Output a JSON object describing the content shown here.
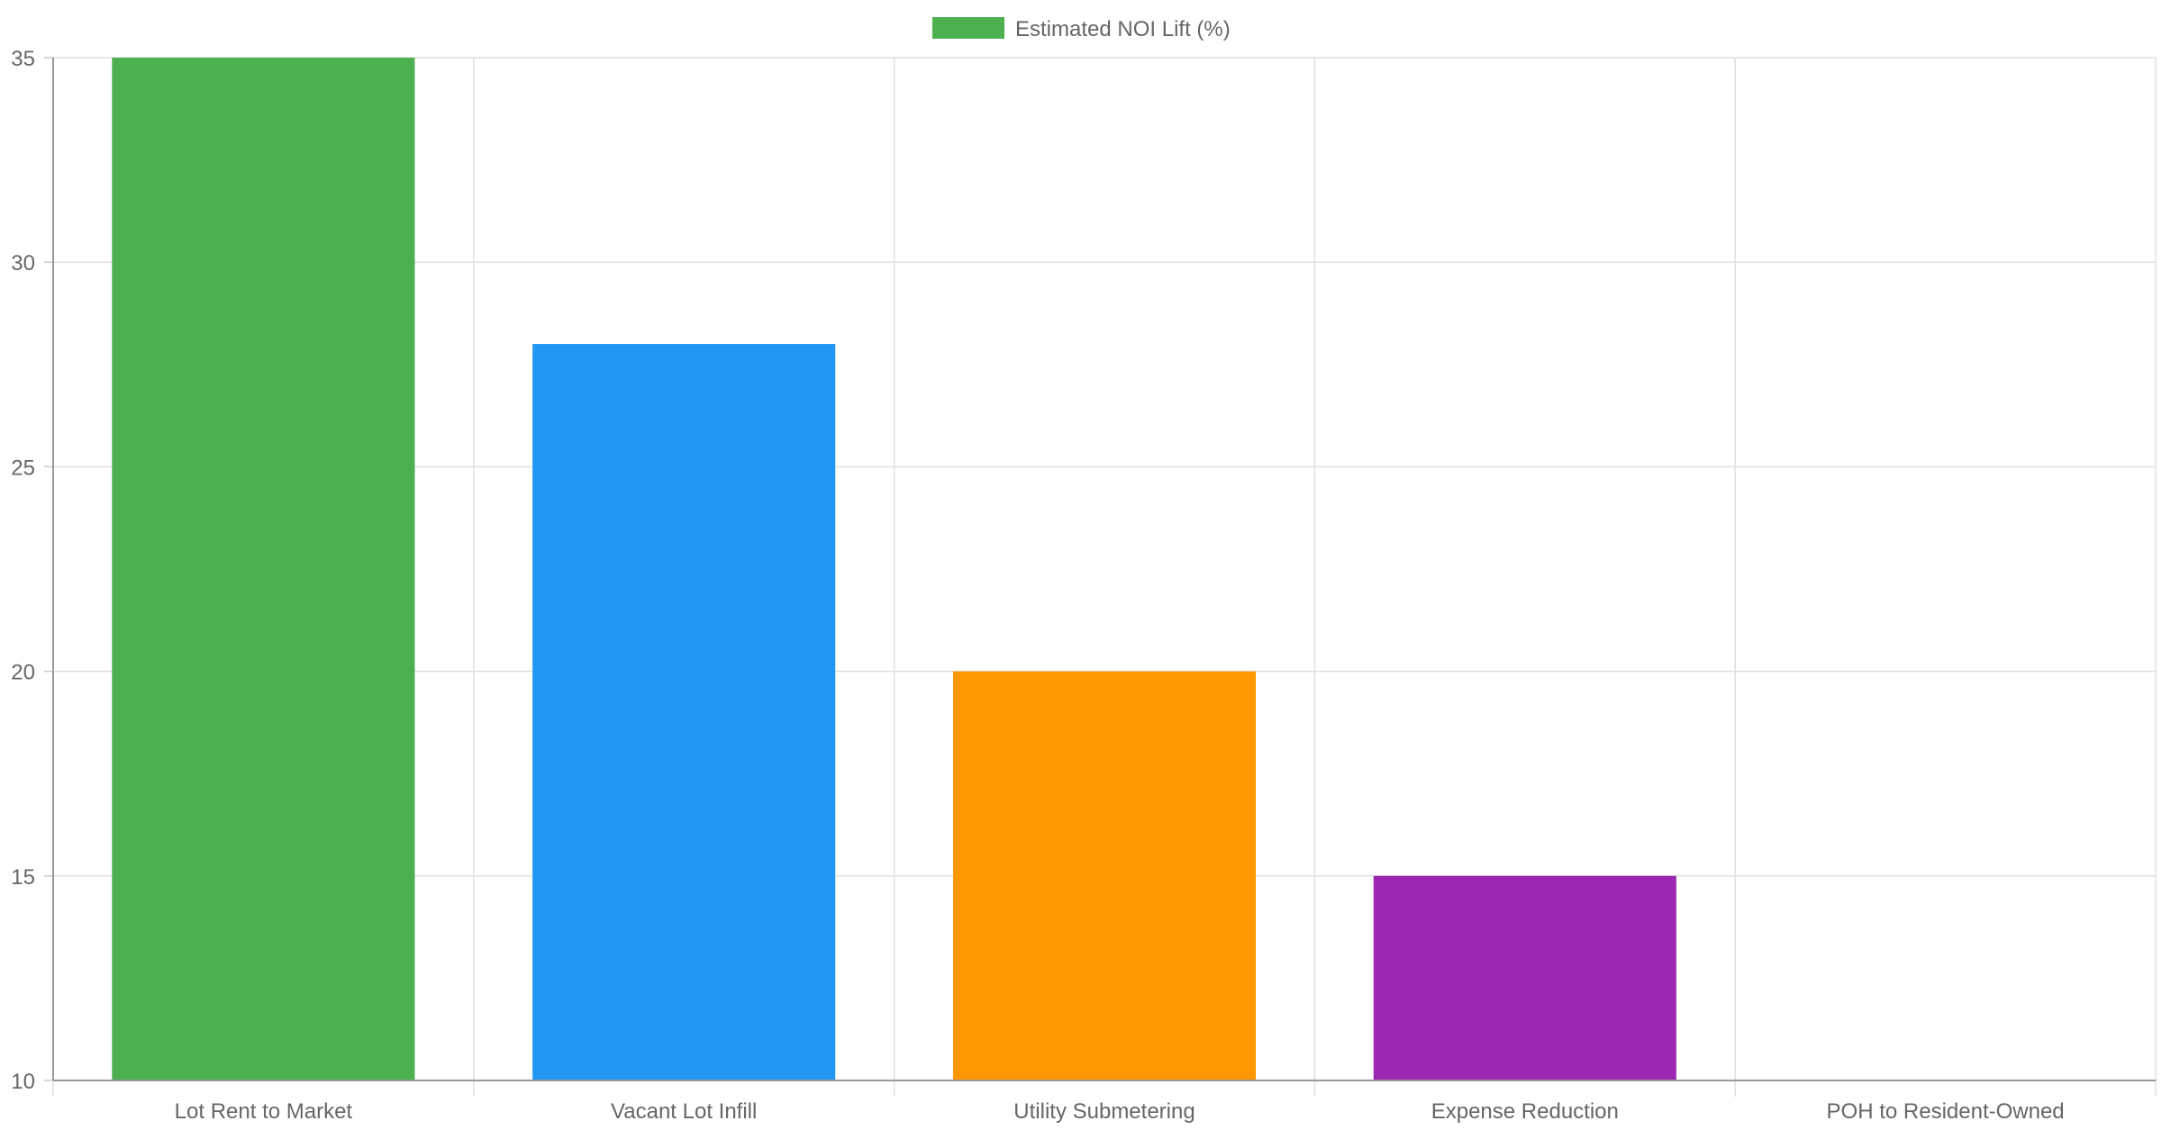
{
  "chart_data": {
    "type": "bar",
    "categories": [
      "Lot Rent to Market",
      "Vacant Lot Infill",
      "Utility Submetering",
      "Expense Reduction",
      "POH to Resident-Owned"
    ],
    "series": [
      {
        "name": "Estimated NOI Lift (%)",
        "values": [
          35,
          28,
          20,
          15,
          10
        ],
        "colors": [
          "#4caf50",
          "#2196f3",
          "#ff9800",
          "#9c27b0",
          "#f44336"
        ]
      }
    ],
    "ylim": [
      10,
      35
    ],
    "yticks": [
      "10",
      "15",
      "20",
      "25",
      "30",
      "35"
    ],
    "grid": true,
    "legend": "top-center",
    "legend_color": "#4caf50"
  }
}
